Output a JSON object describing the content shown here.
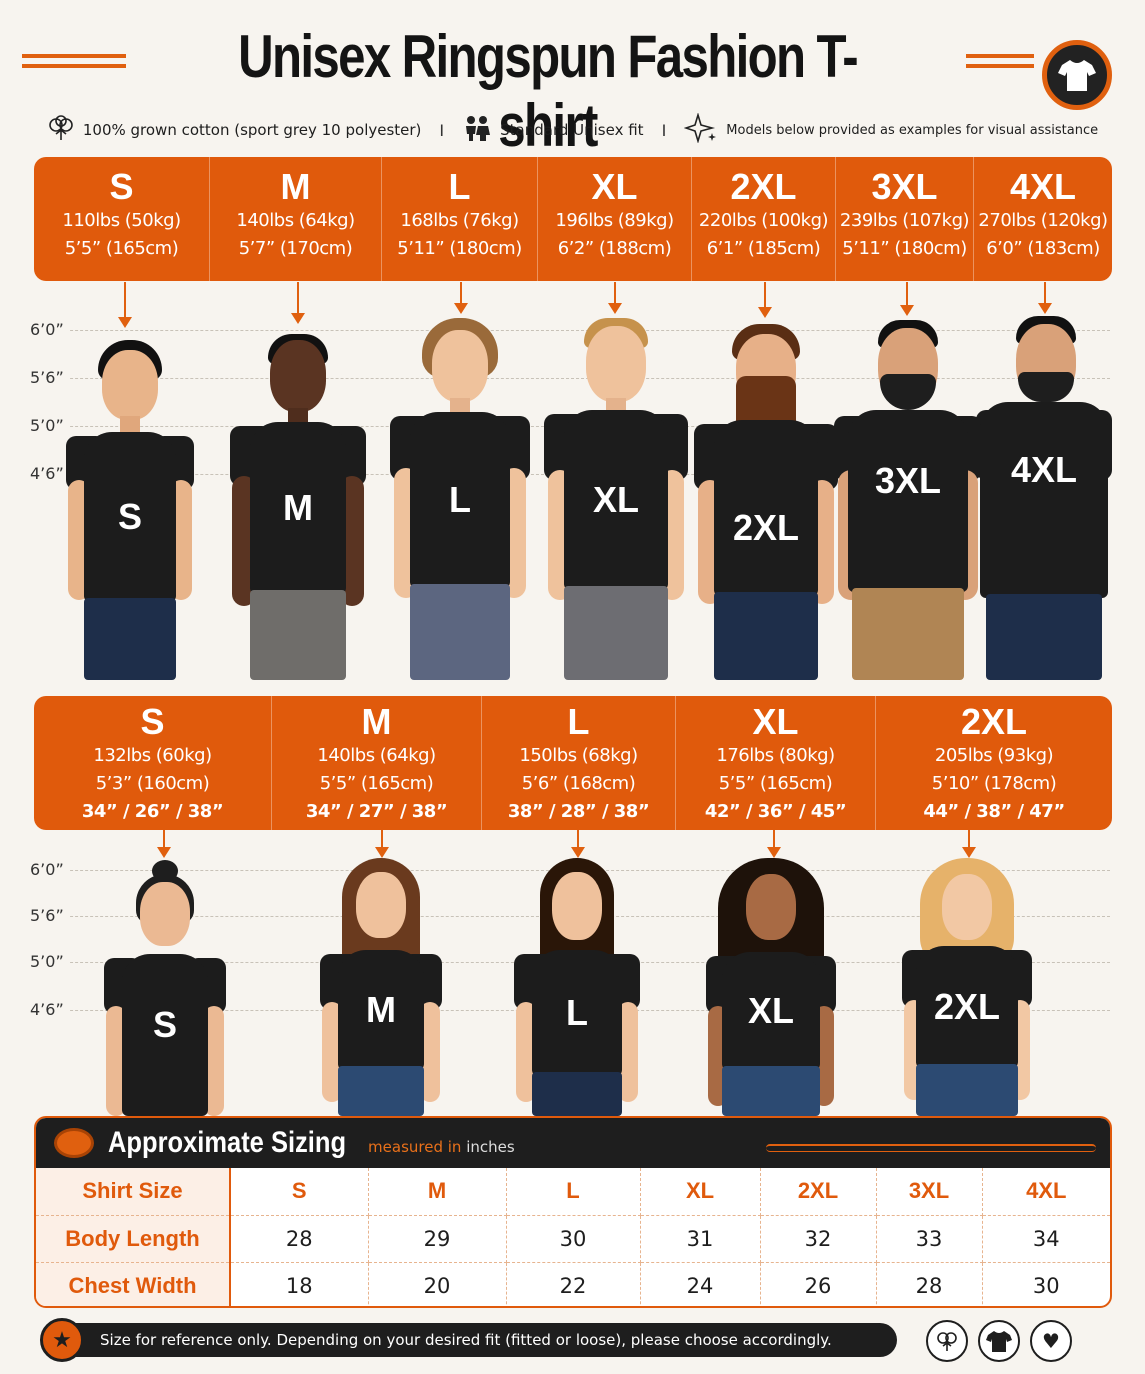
{
  "title": "Unisex Ringspun Fashion T-shirt",
  "features": [
    {
      "icon": "cotton-icon",
      "text": "100% grown cotton (sport grey 10 polyester)"
    },
    {
      "icon": "people-icon",
      "text": "Standard Unisex fit"
    },
    {
      "icon": "sparkle-icon",
      "text": "Models below provided as examples for visual assistance"
    }
  ],
  "separator": "I",
  "men_models": [
    {
      "size": "S",
      "weight": "110lbs (50kg)",
      "height": "5’5” (165cm)"
    },
    {
      "size": "M",
      "weight": "140lbs (64kg)",
      "height": "5’7” (170cm)"
    },
    {
      "size": "L",
      "weight": "168lbs (76kg)",
      "height": "5’11” (180cm)"
    },
    {
      "size": "XL",
      "weight": "196lbs (89kg)",
      "height": "6’2” (188cm)"
    },
    {
      "size": "2XL",
      "weight": "220lbs (100kg)",
      "height": "6’1” (185cm)"
    },
    {
      "size": "3XL",
      "weight": "239lbs (107kg)",
      "height": "5’11” (180cm)"
    },
    {
      "size": "4XL",
      "weight": "270lbs (120kg)",
      "height": "6’0” (183cm)"
    }
  ],
  "women_models": [
    {
      "size": "S",
      "weight": "132lbs (60kg)",
      "height": "5’3” (160cm)",
      "measure": "34” / 26” / 38”"
    },
    {
      "size": "M",
      "weight": "140lbs (64kg)",
      "height": "5’5” (165cm)",
      "measure": "34” / 27” / 38”"
    },
    {
      "size": "L",
      "weight": "150lbs (68kg)",
      "height": "5’6” (168cm)",
      "measure": "38” / 28” / 38”"
    },
    {
      "size": "XL",
      "weight": "176lbs (80kg)",
      "height": "5’5” (165cm)",
      "measure": "42” / 36” / 45”"
    },
    {
      "size": "2XL",
      "weight": "205lbs (93kg)",
      "height": "5’10” (178cm)",
      "measure": "44” / 38” / 47”"
    }
  ],
  "height_scale": [
    "6’0”",
    "5’6”",
    "5’0”",
    "4’6”"
  ],
  "sizing": {
    "title": "Approximate Sizing",
    "subtitle_prefix": "measured in",
    "subtitle_unit": "inches",
    "rows": [
      {
        "label": "Shirt Size",
        "values": [
          "S",
          "M",
          "L",
          "XL",
          "2XL",
          "3XL",
          "4XL"
        ]
      },
      {
        "label": "Body Length",
        "values": [
          "28",
          "29",
          "30",
          "31",
          "32",
          "33",
          "34"
        ]
      },
      {
        "label": "Chest Width",
        "values": [
          "18",
          "20",
          "22",
          "24",
          "26",
          "28",
          "30"
        ]
      }
    ]
  },
  "note": "Size for reference only. Depending on your desired fit (fitted or loose), please choose accordingly.",
  "colors": {
    "accent": "#e05a0c",
    "dark": "#1c1c1c",
    "background": "#f7f4ef"
  }
}
